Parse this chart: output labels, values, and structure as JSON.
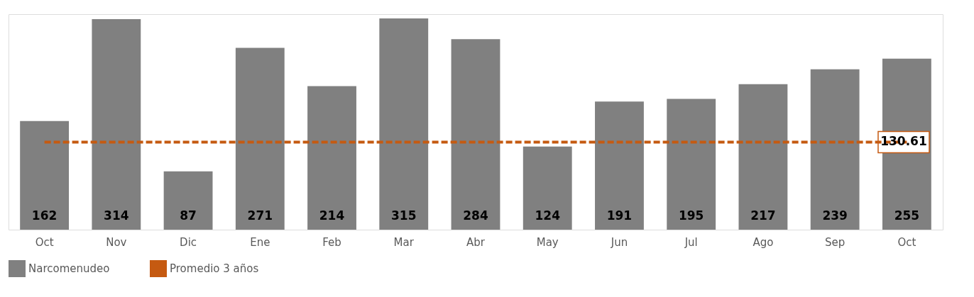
{
  "chart_data": {
    "type": "bar",
    "categories": [
      "Oct",
      "Nov",
      "Dic",
      "Ene",
      "Feb",
      "Mar",
      "Abr",
      "May",
      "Jun",
      "Jul",
      "Ago",
      "Sep",
      "Oct"
    ],
    "series": [
      {
        "name": "Narcomenudeo",
        "color": "#808080",
        "values": [
          162,
          314,
          87,
          271,
          214,
          315,
          284,
          124,
          191,
          195,
          217,
          239,
          255
        ],
        "value_labels": [
          "162",
          "314",
          "87",
          "271",
          "214",
          "315",
          "284",
          "124",
          "191",
          "195",
          "217",
          "239",
          "255"
        ]
      },
      {
        "name": "Promedio 3 años",
        "type": "line",
        "color": "#c55a11",
        "line_style": "dashed",
        "values": [
          130.61,
          130.61,
          130.61,
          130.61,
          130.61,
          130.61,
          130.61,
          130.61,
          130.61,
          130.61,
          130.61,
          130.61,
          130.61
        ],
        "value_labels": [
          null,
          null,
          null,
          null,
          null,
          null,
          null,
          null,
          null,
          null,
          null,
          null,
          "130.61"
        ]
      }
    ],
    "legend": "bottom"
  }
}
